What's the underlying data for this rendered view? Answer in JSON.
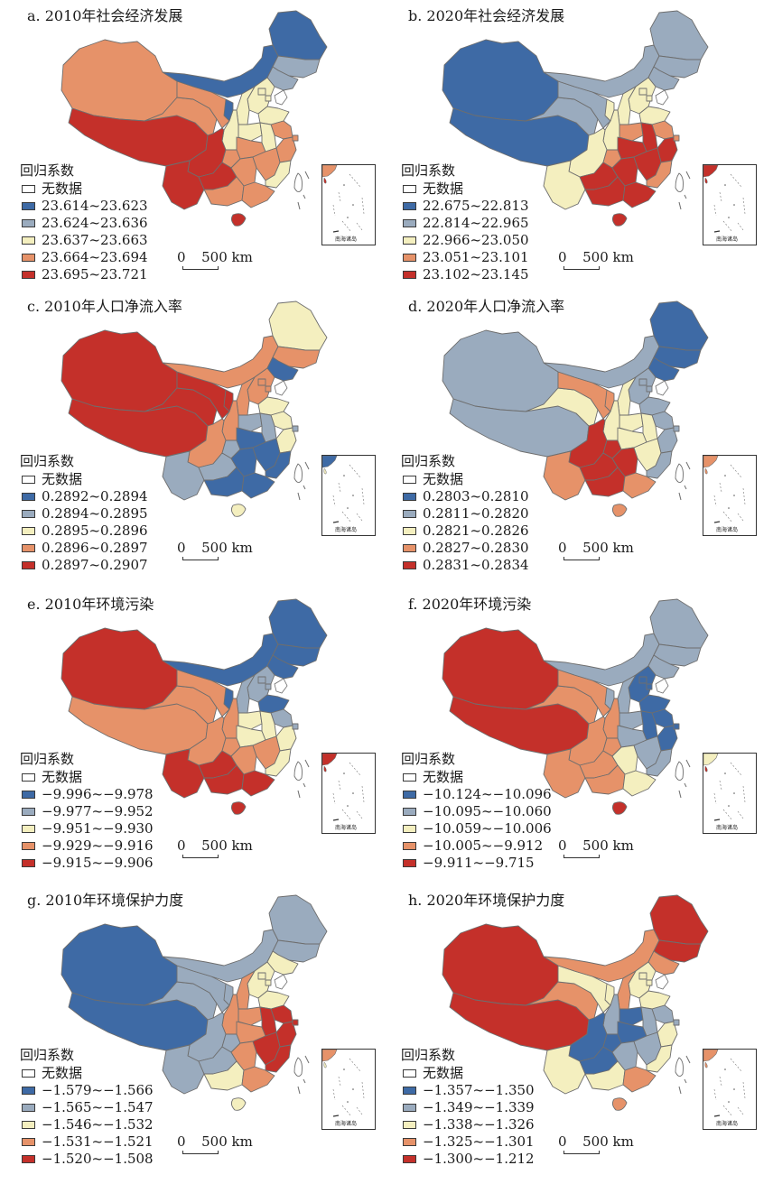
{
  "legend": {
    "title": "回归系数",
    "nodata": "无数据",
    "inset_label": "南海诸岛",
    "scale_zero": "0",
    "scale_text": "500 km"
  },
  "colors": {
    "c1": "#3e6aa5",
    "c2": "#9aabbe",
    "c3": "#f4efbf",
    "c4": "#e69269",
    "c5": "#c4302a",
    "nodata": "#ffffff"
  },
  "panels": [
    {
      "title": "a. 2010年社会经济发展",
      "classes": [
        "23.614~23.623",
        "23.624~23.636",
        "23.637~23.663",
        "23.664~23.694",
        "23.695~23.721"
      ],
      "map": {
        "XJ": 4,
        "XZ": 5,
        "QH": 4,
        "GS": 4,
        "NM": 1,
        "HLJ": 1,
        "JL": 2,
        "LN": 2,
        "HE": 3,
        "BJ": 3,
        "TJ": 3,
        "SD": 3,
        "SX": 3,
        "HA": 3,
        "SN": 3,
        "NX": 1,
        "SC": 5,
        "CQ": 4,
        "YN": 5,
        "GZ": 5,
        "HB": 4,
        "HN": 4,
        "GX": 4,
        "GD": 4,
        "HI": 5,
        "JS": 4,
        "AH": 3,
        "ZJ": 4,
        "JX": 4,
        "FJ": 3,
        "SH": 4,
        "TW": 0
      }
    },
    {
      "title": "b. 2020年社会经济发展",
      "classes": [
        "22.675~22.813",
        "22.814~22.965",
        "22.966~23.050",
        "23.051~23.101",
        "23.102~23.145"
      ],
      "map": {
        "XJ": 1,
        "XZ": 1,
        "QH": 2,
        "GS": 2,
        "NM": 2,
        "HLJ": 2,
        "JL": 2,
        "LN": 2,
        "HE": 3,
        "BJ": 3,
        "TJ": 3,
        "SD": 3,
        "SX": 3,
        "HA": 4,
        "SN": 3,
        "NX": 3,
        "SC": 3,
        "CQ": 4,
        "YN": 3,
        "GZ": 5,
        "HB": 5,
        "HN": 5,
        "GX": 5,
        "GD": 5,
        "HI": 5,
        "JS": 4,
        "AH": 5,
        "ZJ": 5,
        "JX": 5,
        "FJ": 4,
        "SH": 4,
        "TW": 0
      }
    },
    {
      "title": "c. 2010年人口净流入率",
      "classes": [
        "0.2892~0.2894",
        "0.2894~0.2895",
        "0.2895~0.2896",
        "0.2896~0.2897",
        "0.2897~0.2907"
      ],
      "map": {
        "XJ": 5,
        "XZ": 5,
        "QH": 5,
        "GS": 5,
        "NM": 4,
        "HLJ": 3,
        "JL": 4,
        "LN": 1,
        "HE": 4,
        "BJ": 4,
        "TJ": 4,
        "SD": 3,
        "SX": 4,
        "HA": 2,
        "SN": 4,
        "NX": 5,
        "SC": 4,
        "CQ": 2,
        "YN": 2,
        "GZ": 2,
        "HB": 1,
        "HN": 1,
        "GX": 1,
        "GD": 1,
        "HI": 3,
        "JS": 3,
        "AH": 2,
        "ZJ": 3,
        "JX": 1,
        "FJ": 1,
        "SH": 2,
        "TW": 0
      }
    },
    {
      "title": "d. 2020年人口净流入率",
      "classes": [
        "0.2803~0.2810",
        "0.2811~0.2820",
        "0.2821~0.2826",
        "0.2827~0.2830",
        "0.2831~0.2834"
      ],
      "map": {
        "XJ": 2,
        "XZ": 2,
        "QH": 3,
        "GS": 4,
        "NM": 2,
        "HLJ": 1,
        "JL": 1,
        "LN": 1,
        "HE": 2,
        "BJ": 2,
        "TJ": 2,
        "SD": 2,
        "SX": 3,
        "HA": 3,
        "SN": 3,
        "NX": 4,
        "SC": 5,
        "CQ": 5,
        "YN": 4,
        "GZ": 5,
        "HB": 3,
        "HN": 5,
        "GX": 5,
        "GD": 4,
        "HI": 4,
        "JS": 2,
        "AH": 3,
        "ZJ": 2,
        "JX": 3,
        "FJ": 2,
        "SH": 2,
        "TW": 0
      }
    },
    {
      "title": "e. 2010年环境污染",
      "classes": [
        "−9.996~−9.978",
        "−9.977~−9.952",
        "−9.951~−9.930",
        "−9.929~−9.916",
        "−9.915~−9.906"
      ],
      "map": {
        "XJ": 5,
        "XZ": 4,
        "QH": 4,
        "GS": 4,
        "NM": 1,
        "HLJ": 1,
        "JL": 1,
        "LN": 1,
        "HE": 2,
        "BJ": 2,
        "TJ": 2,
        "SD": 1,
        "SX": 2,
        "HA": 3,
        "SN": 4,
        "NX": 1,
        "SC": 4,
        "CQ": 4,
        "YN": 5,
        "GZ": 5,
        "HB": 3,
        "HN": 4,
        "GX": 5,
        "GD": 5,
        "HI": 5,
        "JS": 2,
        "AH": 3,
        "ZJ": 3,
        "JX": 4,
        "FJ": 3,
        "SH": 2,
        "TW": 0
      }
    },
    {
      "title": "f. 2020年环境污染",
      "classes": [
        "−10.124~−10.096",
        "−10.095~−10.060",
        "−10.059~−10.006",
        "−10.005~−9.912",
        "−9.911~−9.715"
      ],
      "map": {
        "XJ": 5,
        "XZ": 5,
        "QH": 4,
        "GS": 4,
        "NM": 2,
        "HLJ": 2,
        "JL": 2,
        "LN": 2,
        "HE": 1,
        "BJ": 1,
        "TJ": 1,
        "SD": 1,
        "SX": 2,
        "HA": 2,
        "SN": 4,
        "NX": 2,
        "SC": 4,
        "CQ": 4,
        "YN": 4,
        "GZ": 4,
        "HB": 2,
        "HN": 3,
        "GX": 4,
        "GD": 3,
        "HI": 5,
        "JS": 1,
        "AH": 1,
        "ZJ": 1,
        "JX": 2,
        "FJ": 2,
        "SH": 1,
        "TW": 0
      }
    },
    {
      "title": "g. 2010年环境保护力度",
      "classes": [
        "−1.579~−1.566",
        "−1.565~−1.547",
        "−1.546~−1.532",
        "−1.531~−1.521",
        "−1.520~−1.508"
      ],
      "map": {
        "XJ": 1,
        "XZ": 1,
        "QH": 2,
        "GS": 2,
        "NM": 2,
        "HLJ": 2,
        "JL": 2,
        "LN": 3,
        "HE": 3,
        "BJ": 3,
        "TJ": 3,
        "SD": 3,
        "SX": 4,
        "HA": 4,
        "SN": 4,
        "NX": 2,
        "SC": 2,
        "CQ": 2,
        "YN": 2,
        "GZ": 2,
        "HB": 4,
        "HN": 4,
        "GX": 3,
        "GD": 4,
        "HI": 3,
        "JS": 5,
        "AH": 5,
        "ZJ": 5,
        "JX": 5,
        "FJ": 5,
        "SH": 5,
        "TW": 0
      }
    },
    {
      "title": "h. 2020年环境保护力度",
      "classes": [
        "−1.357~−1.350",
        "−1.349~−1.339",
        "−1.338~−1.326",
        "−1.325~−1.301",
        "−1.300~−1.212"
      ],
      "map": {
        "XJ": 5,
        "XZ": 5,
        "QH": 4,
        "GS": 3,
        "NM": 4,
        "HLJ": 5,
        "JL": 5,
        "LN": 4,
        "HE": 3,
        "BJ": 3,
        "TJ": 3,
        "SD": 3,
        "SX": 4,
        "HA": 1,
        "SN": 2,
        "NX": 3,
        "SC": 1,
        "CQ": 1,
        "YN": 3,
        "GZ": 1,
        "HB": 1,
        "HN": 2,
        "GX": 3,
        "GD": 4,
        "HI": 4,
        "JS": 2,
        "AH": 2,
        "ZJ": 3,
        "JX": 2,
        "FJ": 3,
        "SH": 2,
        "TW": 0
      }
    }
  ]
}
